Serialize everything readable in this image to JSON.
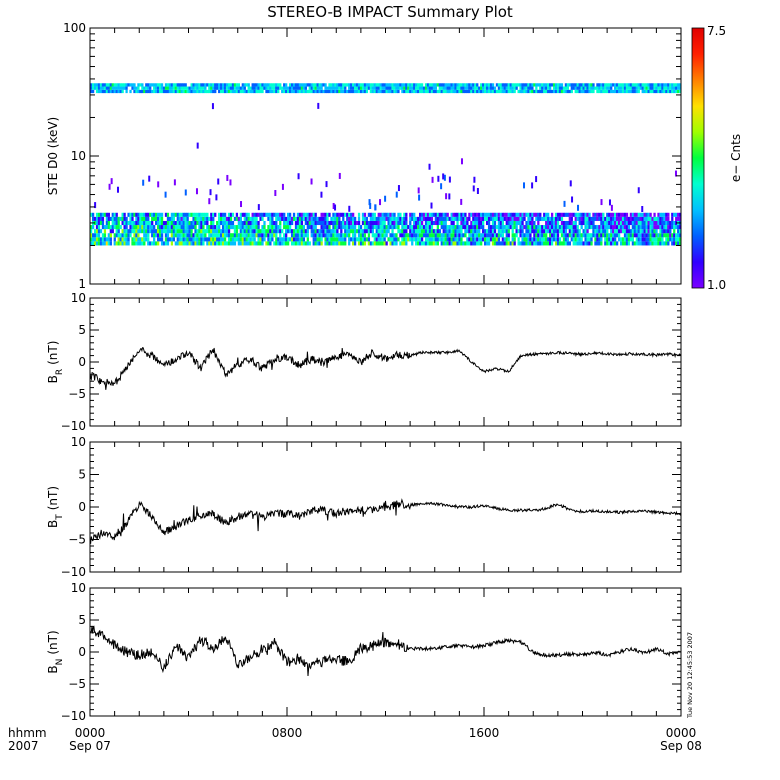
{
  "title": "STEREO-B IMPACT Summary Plot",
  "footer": {
    "hhmm": "hhmm",
    "year": "2007",
    "x_ticks": [
      "0000",
      "0800",
      "1600",
      "0000"
    ],
    "date_labels": [
      "Sep 07",
      "Sep 08"
    ],
    "timestamp": "Tue Nov 20 12:45:53 2007"
  },
  "colorbar": {
    "label": "e− Cnts",
    "max_label": "7.5",
    "min_label": "1.0",
    "min": 1.0,
    "max": 7.5,
    "colormap": [
      "#7a00ff",
      "#3000ff",
      "#0060ff",
      "#00c0ff",
      "#00ffd0",
      "#00ff40",
      "#a0ff00",
      "#ffe000",
      "#ff8000",
      "#ff2000",
      "#e00000"
    ]
  },
  "chart_data": [
    {
      "type": "heatmap",
      "id": "ste-d0",
      "ylabel": "STE D0 (keV)",
      "yscale": "log",
      "ylim": [
        1,
        100
      ],
      "y_tick_labels": [
        "1",
        "10",
        "100"
      ],
      "x_range_hours": [
        0,
        24
      ],
      "bands": [
        {
          "name": "low-energy band",
          "e_low": 2.0,
          "e_high": 3.6,
          "counts_min": 1.5,
          "counts_max": 4.5
        },
        {
          "name": "high-energy band",
          "e_low": 31,
          "e_high": 37,
          "counts_min": 2.0,
          "counts_max": 4.0
        }
      ]
    },
    {
      "type": "line",
      "id": "br",
      "ylabel": "B_R (nT)",
      "ylabel_main": "B",
      "ylabel_sub": "R",
      "ylabel_unit": "(nT)",
      "ylim": [
        -10,
        10
      ],
      "y_tick_labels": [
        "−10",
        "−5",
        "0",
        "5",
        "10"
      ],
      "x": [
        0,
        0.5,
        1,
        1.5,
        2,
        2.5,
        3,
        3.5,
        4,
        4.5,
        5,
        5.5,
        6,
        6.5,
        7,
        7.5,
        8,
        8.5,
        9,
        9.5,
        10,
        10.5,
        11,
        11.5,
        12,
        12.5,
        13,
        13.5,
        14,
        14.5,
        15,
        15.5,
        16,
        16.5,
        17,
        17.5,
        18,
        18.5,
        19,
        19.5,
        20,
        20.5,
        21,
        21.5,
        22,
        22.5,
        23,
        23.5,
        24
      ],
      "y": [
        -2.0,
        -3.0,
        -3.5,
        -1.0,
        2.0,
        1.0,
        -0.5,
        0.5,
        1.5,
        -1.0,
        2.0,
        -2.0,
        -0.5,
        0.5,
        -1.0,
        0.5,
        0.8,
        -0.5,
        0.5,
        -0.2,
        0.8,
        1.0,
        0.0,
        1.5,
        0.5,
        1.2,
        1.0,
        1.5,
        1.5,
        1.5,
        1.8,
        0.0,
        -1.5,
        -1.0,
        -1.5,
        1.0,
        1.2,
        1.3,
        1.5,
        1.3,
        1.2,
        1.4,
        1.3,
        1.2,
        1.3,
        1.2,
        1.1,
        1.2,
        1.0
      ],
      "noise": 0.6
    },
    {
      "type": "line",
      "id": "bt",
      "ylabel": "B_T (nT)",
      "ylabel_main": "B",
      "ylabel_sub": "T",
      "ylabel_unit": "(nT)",
      "ylim": [
        -10,
        10
      ],
      "y_tick_labels": [
        "−10",
        "−5",
        "0",
        "5",
        "10"
      ],
      "x": [
        0,
        0.5,
        1,
        1.5,
        2,
        2.5,
        3,
        3.5,
        4,
        4.5,
        5,
        5.5,
        6,
        6.5,
        7,
        7.5,
        8,
        8.5,
        9,
        9.5,
        10,
        10.5,
        11,
        11.5,
        12,
        12.5,
        13,
        13.5,
        14,
        14.5,
        15,
        15.5,
        16,
        16.5,
        17,
        17.5,
        18,
        18.5,
        19,
        19.5,
        20,
        20.5,
        21,
        21.5,
        22,
        22.5,
        23,
        23.5,
        24
      ],
      "y": [
        -5.0,
        -4.0,
        -4.5,
        -2.5,
        0.5,
        -1.5,
        -4.0,
        -3.0,
        -2.0,
        -1.5,
        -1.0,
        -2.5,
        -1.5,
        -1.0,
        -1.5,
        -1.0,
        -1.0,
        -1.5,
        -0.5,
        -0.5,
        -1.0,
        -0.5,
        -0.5,
        -0.5,
        -0.2,
        0.5,
        0.3,
        0.5,
        0.5,
        0.3,
        0.0,
        0.0,
        0.2,
        -0.2,
        -0.5,
        -0.5,
        -0.5,
        -0.3,
        0.5,
        -0.5,
        -0.7,
        -0.6,
        -0.7,
        -0.8,
        -0.7,
        -0.6,
        -0.8,
        -1.0,
        -1.0
      ],
      "noise": 0.6
    },
    {
      "type": "line",
      "id": "bn",
      "ylabel": "B_N (nT)",
      "ylabel_main": "B",
      "ylabel_sub": "N",
      "ylabel_unit": "(nT)",
      "ylim": [
        -10,
        10
      ],
      "y_tick_labels": [
        "−10",
        "−5",
        "0",
        "5",
        "10"
      ],
      "x": [
        0,
        0.5,
        1,
        1.5,
        2,
        2.5,
        3,
        3.5,
        4,
        4.5,
        5,
        5.5,
        6,
        6.5,
        7,
        7.5,
        8,
        8.5,
        9,
        9.5,
        10,
        10.5,
        11,
        11.5,
        12,
        12.5,
        13,
        13.5,
        14,
        14.5,
        15,
        15.5,
        16,
        16.5,
        17,
        17.5,
        18,
        18.5,
        19,
        19.5,
        20,
        20.5,
        21,
        21.5,
        22,
        22.5,
        23,
        23.5,
        24
      ],
      "y": [
        3.5,
        2.5,
        1.0,
        0.0,
        -0.5,
        0.0,
        -2.5,
        1.0,
        -1.0,
        2.0,
        0.5,
        2.5,
        -2.0,
        -1.0,
        0.5,
        1.5,
        -1.5,
        -1.5,
        -1.8,
        -1.5,
        -1.2,
        -1.5,
        0.5,
        1.0,
        1.5,
        0.8,
        0.5,
        0.5,
        0.5,
        0.8,
        1.0,
        0.8,
        1.0,
        1.5,
        1.8,
        1.5,
        0.0,
        -0.5,
        -0.5,
        -0.3,
        -0.5,
        0.0,
        -0.5,
        0.0,
        0.5,
        -0.2,
        0.5,
        -0.3,
        0.0
      ],
      "noise": 0.8
    }
  ]
}
